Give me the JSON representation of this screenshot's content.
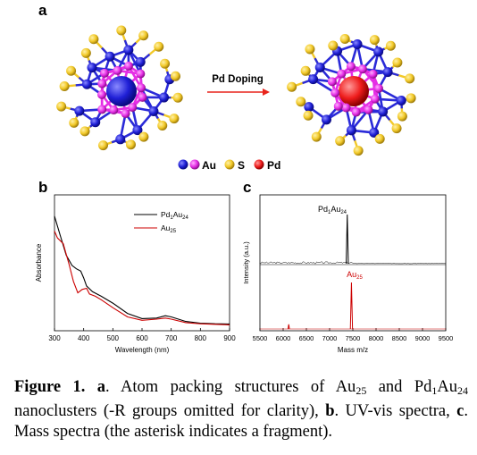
{
  "panel_a": {
    "letter": "a",
    "arrow_label": "Pd Doping",
    "legend": [
      {
        "label": "Au",
        "colors": [
          "#1f1fd6",
          "#e52de5"
        ]
      },
      {
        "label": "S",
        "colors": [
          "#f2c928"
        ]
      },
      {
        "label": "Pd",
        "colors": [
          "#ee1c1c"
        ]
      }
    ]
  },
  "panel_b": {
    "letter": "b",
    "chart_data": {
      "type": "line",
      "xlabel": "Wavelength (nm)",
      "ylabel": "Absorbance",
      "xlim": [
        300,
        900
      ],
      "xticks": [
        300,
        400,
        500,
        600,
        700,
        800,
        900
      ],
      "ylim": [
        0,
        1
      ],
      "legend_position": "top-right",
      "series": [
        {
          "name_main": "Pd",
          "name_sub1": "1",
          "name_mid": "Au",
          "name_sub2": "24",
          "color": "#000000",
          "x": [
            300,
            320,
            340,
            360,
            375,
            390,
            400,
            410,
            430,
            460,
            500,
            550,
            600,
            650,
            680,
            700,
            750,
            800,
            850,
            900
          ],
          "y": [
            0.97,
            0.8,
            0.63,
            0.54,
            0.51,
            0.49,
            0.43,
            0.36,
            0.31,
            0.27,
            0.21,
            0.12,
            0.075,
            0.08,
            0.1,
            0.09,
            0.05,
            0.035,
            0.03,
            0.028
          ]
        },
        {
          "name_main": "Au",
          "name_sub1": "25",
          "name_mid": "",
          "name_sub2": "",
          "color": "#cc0000",
          "x": [
            300,
            310,
            330,
            350,
            365,
            380,
            395,
            410,
            420,
            440,
            460,
            500,
            550,
            600,
            650,
            680,
            700,
            750,
            800,
            850,
            900
          ],
          "y": [
            0.84,
            0.78,
            0.73,
            0.55,
            0.4,
            0.3,
            0.33,
            0.34,
            0.29,
            0.27,
            0.24,
            0.17,
            0.09,
            0.06,
            0.07,
            0.08,
            0.07,
            0.04,
            0.03,
            0.025,
            0.02
          ]
        }
      ]
    }
  },
  "panel_c": {
    "letter": "c",
    "chart_data": {
      "type": "line",
      "xlabel": "Mass m/z",
      "ylabel": "Intensity (a.u.)",
      "xlim": [
        5500,
        9500
      ],
      "xticks": [
        5500,
        6000,
        6500,
        7000,
        7500,
        8000,
        8500,
        9000,
        9500
      ],
      "series": [
        {
          "name_main": "Pd",
          "name_sub1": "1",
          "name_mid": "Au",
          "name_sub2": "24",
          "color": "#000000",
          "peak_x": 7380,
          "peak_height": 1.0
        },
        {
          "name_main": "Au",
          "name_sub1": "25",
          "name_mid": "",
          "name_sub2": "",
          "color": "#cc0000",
          "peak_x": 7470,
          "peak_height": 1.0,
          "fragment_x": 6120,
          "fragment_height": 0.1
        }
      ]
    }
  },
  "caption": {
    "fig_label": "Figure 1.",
    "a_label": "a",
    "part1": ". Atom packing structures of Au",
    "sub_25": "25",
    "part2": " and Pd",
    "sub_1": "1",
    "part3": "Au",
    "sub_24": "24",
    "part4": " nanoclusters (-R groups omitted for clarity), ",
    "b_label": "b",
    "part5": ". UV-vis spectra, ",
    "c_label": "c",
    "part6": ". Mass spectra (the asterisk indicates a fragment)."
  }
}
